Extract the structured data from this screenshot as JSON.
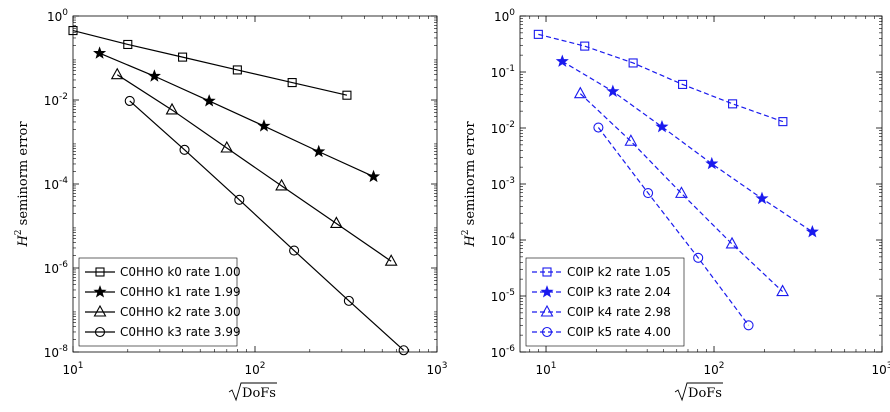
{
  "chart_data": [
    {
      "type": "line",
      "color": "#000000",
      "dash": false,
      "xscale": "log",
      "yscale": "log",
      "xlim": [
        10,
        1000
      ],
      "ylim": [
        1e-08,
        1
      ],
      "xticks": [
        {
          "v": 10,
          "b": "10",
          "e": "1"
        },
        {
          "v": 100,
          "b": "10",
          "e": "2"
        },
        {
          "v": 1000,
          "b": "10",
          "e": "3"
        }
      ],
      "yticks": [
        {
          "v": 1,
          "b": "10",
          "e": "0"
        },
        {
          "v": 0.01,
          "b": "10",
          "e": "-2"
        },
        {
          "v": 0.0001,
          "b": "10",
          "e": "-4"
        },
        {
          "v": 1e-06,
          "b": "10",
          "e": "-6"
        },
        {
          "v": 1e-08,
          "b": "10",
          "e": "-8"
        }
      ],
      "ylabel": "H",
      "ylabel_sup": "2",
      "ylabel_rest": " seminorm error",
      "xlabel": "DoFs",
      "legend_position": "bottom-left",
      "series": [
        {
          "name": "C0HHO k0 rate 1.00",
          "marker": "square",
          "x": [
            10,
            20,
            40,
            80,
            160,
            320
          ],
          "y": [
            0.45,
            0.21,
            0.105,
            0.052,
            0.026,
            0.013
          ]
        },
        {
          "name": "C0HHO k1 rate 1.99",
          "marker": "star",
          "x": [
            14,
            28,
            56,
            112,
            224,
            448
          ],
          "y": [
            0.13,
            0.037,
            0.0095,
            0.0024,
            0.00059,
            0.00015
          ]
        },
        {
          "name": "C0HHO k2 rate 3.00",
          "marker": "triangle",
          "x": [
            17.5,
            35,
            70,
            140,
            280,
            560
          ],
          "y": [
            0.04,
            0.0058,
            0.00072,
            9e-05,
            1.15e-05,
            1.45e-06
          ]
        },
        {
          "name": "C0HHO k3 rate 3.99",
          "marker": "circle",
          "x": [
            20.5,
            41,
            82,
            164,
            328,
            656
          ],
          "y": [
            0.0095,
            0.00065,
            4.2e-05,
            2.6e-06,
            1.65e-07,
            1.1e-08
          ]
        }
      ]
    },
    {
      "type": "line",
      "color": "#1a1aee",
      "dash": true,
      "xscale": "log",
      "yscale": "log",
      "xlim": [
        7,
        1000
      ],
      "ylim": [
        1e-06,
        1
      ],
      "xticks": [
        {
          "v": 10,
          "b": "10",
          "e": "1"
        },
        {
          "v": 100,
          "b": "10",
          "e": "2"
        },
        {
          "v": 1000,
          "b": "10",
          "e": "3"
        }
      ],
      "yticks": [
        {
          "v": 1,
          "b": "10",
          "e": "0"
        },
        {
          "v": 0.1,
          "b": "10",
          "e": "-1"
        },
        {
          "v": 0.01,
          "b": "10",
          "e": "-2"
        },
        {
          "v": 0.001,
          "b": "10",
          "e": "-3"
        },
        {
          "v": 0.0001,
          "b": "10",
          "e": "-4"
        },
        {
          "v": 1e-05,
          "b": "10",
          "e": "-5"
        },
        {
          "v": 1e-06,
          "b": "10",
          "e": "-6"
        }
      ],
      "ylabel": "H",
      "ylabel_sup": "2",
      "ylabel_rest": " seminorm error",
      "xlabel": "DoFs",
      "legend_position": "bottom-left",
      "series": [
        {
          "name": "C0IP k2 rate 1.05",
          "marker": "square",
          "x": [
            9,
            17,
            33,
            65,
            129,
            257
          ],
          "y": [
            0.47,
            0.29,
            0.145,
            0.06,
            0.027,
            0.013
          ]
        },
        {
          "name": "C0IP k3 rate 2.04",
          "marker": "star",
          "x": [
            12.5,
            25,
            49,
            97,
            193,
            385
          ],
          "y": [
            0.155,
            0.045,
            0.0105,
            0.0023,
            0.00055,
            0.00014
          ]
        },
        {
          "name": "C0IP k4 rate 2.98",
          "marker": "triangle",
          "x": [
            16,
            32,
            64,
            128,
            256
          ],
          "y": [
            0.041,
            0.0058,
            0.00068,
            8.5e-05,
            1.2e-05
          ]
        },
        {
          "name": "C0IP k5 rate 4.00",
          "marker": "circle",
          "x": [
            20.5,
            40.5,
            80.5,
            160.5
          ],
          "y": [
            0.0102,
            0.00069,
            4.8e-05,
            3e-06
          ]
        }
      ]
    }
  ]
}
